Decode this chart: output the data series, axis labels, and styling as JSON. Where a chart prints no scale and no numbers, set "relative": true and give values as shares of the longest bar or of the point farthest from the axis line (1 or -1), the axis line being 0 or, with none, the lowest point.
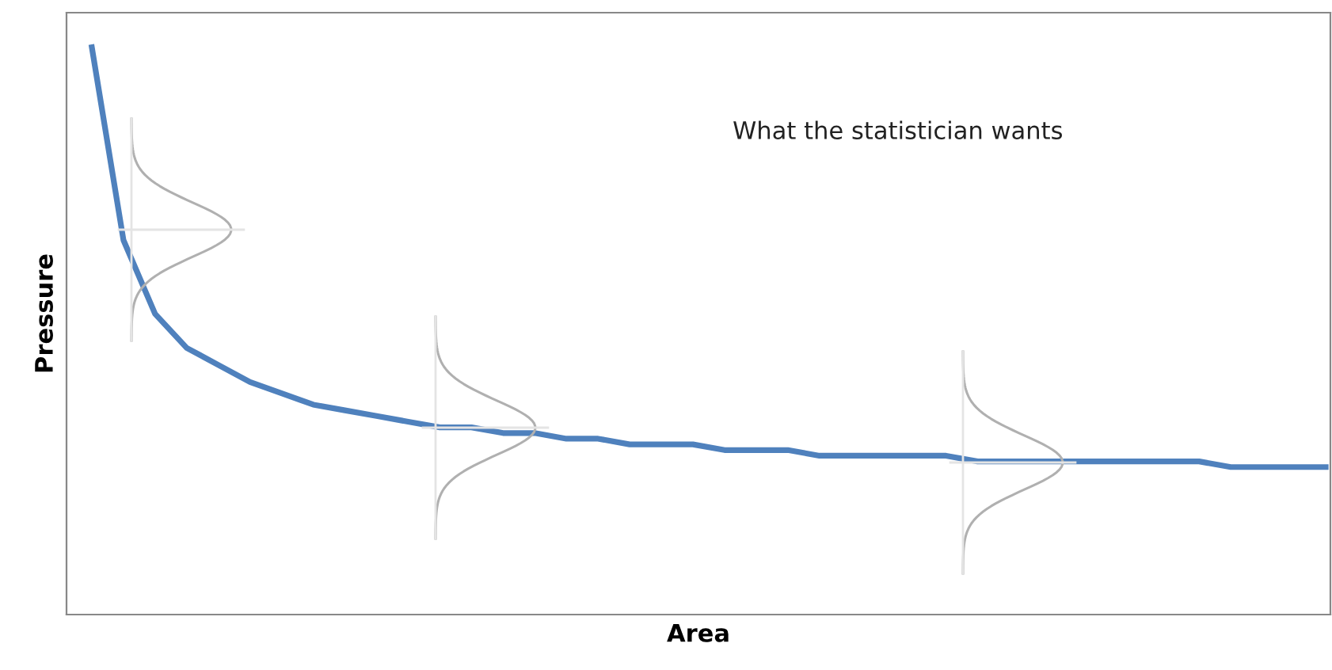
{
  "chart_data": {
    "type": "line",
    "relative": true,
    "xlabel": "Area",
    "ylabel": "Pressure",
    "annotations": [
      "What the statistician wants"
    ],
    "grid": false,
    "tick_labels": false,
    "categories": [
      null,
      null,
      null,
      null,
      null,
      null,
      null,
      null,
      null,
      null,
      null,
      null,
      null,
      null,
      null,
      null,
      null,
      null,
      null,
      null,
      null,
      null,
      null,
      null,
      null,
      null,
      null,
      null,
      null,
      null,
      null,
      null,
      null,
      null,
      null,
      null,
      null,
      null,
      null,
      null
    ],
    "series": [
      {
        "color": "#4f81bd",
        "values": [
          1.0,
          0.66,
          0.53,
          0.47,
          0.44,
          0.41,
          0.39,
          0.37,
          0.36,
          0.35,
          0.34,
          0.33,
          0.33,
          0.32,
          0.32,
          0.31,
          0.31,
          0.3,
          0.3,
          0.3,
          0.29,
          0.29,
          0.29,
          0.28,
          0.28,
          0.28,
          0.28,
          0.28,
          0.27,
          0.27,
          0.27,
          0.27,
          0.27,
          0.27,
          0.27,
          0.27,
          0.26,
          0.26,
          0.26,
          0.26
        ]
      }
    ]
  }
}
